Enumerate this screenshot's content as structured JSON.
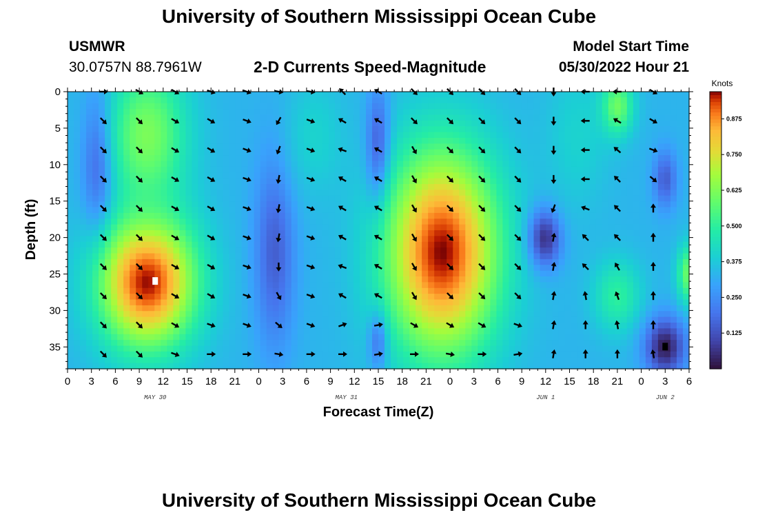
{
  "page": {
    "title_top": "University of Southern Mississippi Ocean Cube",
    "title_bottom": "University of Southern Mississippi Ocean Cube",
    "station_name": "USMWR",
    "station_coords": "30.0757N  88.7961W",
    "plot_title": "2-D Currents Speed-Magnitude",
    "model_start_label": "Model Start Time",
    "model_start_value": "05/30/2022 Hour 21"
  },
  "chart_data": {
    "type": "heatmap",
    "title": "2-D Currents Speed-Magnitude",
    "xlabel": "Forecast Time(Z)",
    "ylabel": "Depth (ft)",
    "colorbar_label": "Knots",
    "colorbar_ticks": [
      "0.875",
      "0.750",
      "0.625",
      "0.500",
      "0.375",
      "0.250",
      "0.125"
    ],
    "colorbar_tick_values": [
      0.875,
      0.75,
      0.625,
      0.5,
      0.375,
      0.25,
      0.125
    ],
    "colorbar_range": [
      0.0,
      0.97
    ],
    "x_range_hours": [
      0,
      78
    ],
    "x_tick_labels": [
      "0",
      "3",
      "6",
      "9",
      "12",
      "15",
      "18",
      "21",
      "0",
      "3",
      "6",
      "9",
      "12",
      "15",
      "18",
      "21",
      "0",
      "3",
      "6",
      "9",
      "12",
      "15",
      "18",
      "21",
      "0",
      "3",
      "6"
    ],
    "x_tick_hours": [
      0,
      3,
      6,
      9,
      12,
      15,
      18,
      21,
      24,
      27,
      30,
      33,
      36,
      39,
      42,
      45,
      48,
      51,
      54,
      57,
      60,
      63,
      66,
      69,
      72,
      75,
      78
    ],
    "date_labels": [
      {
        "text": "MAY 30",
        "hour": 11
      },
      {
        "text": "MAY 31",
        "hour": 35
      },
      {
        "text": "JUN 1",
        "hour": 60
      },
      {
        "text": "JUN 2",
        "hour": 75
      }
    ],
    "y_range_ft": [
      0,
      38
    ],
    "y_tick_labels": [
      "0",
      "5",
      "10",
      "15",
      "20",
      "25",
      "30",
      "35"
    ],
    "y_tick_values": [
      0,
      5,
      10,
      15,
      20,
      25,
      30,
      35
    ],
    "speed_features": [
      {
        "hour": 4,
        "depth": 10,
        "speed": 0.1,
        "sx": 2,
        "sy": 10
      },
      {
        "hour": 10,
        "depth": 26,
        "speed": 0.97,
        "sx": 6,
        "sy": 9
      },
      {
        "hour": 10,
        "depth": 6,
        "speed": 0.62,
        "sx": 5,
        "sy": 10
      },
      {
        "hour": 26,
        "depth": 22,
        "speed": 0.15,
        "sx": 2.5,
        "sy": 13
      },
      {
        "hour": 31,
        "depth": 6,
        "speed": 0.4,
        "sx": 3.5,
        "sy": 8
      },
      {
        "hour": 39,
        "depth": 8,
        "speed": 0.1,
        "sx": 1.5,
        "sy": 8
      },
      {
        "hour": 39,
        "depth": 34,
        "speed": 0.12,
        "sx": 1.2,
        "sy": 4
      },
      {
        "hour": 47,
        "depth": 22,
        "speed": 0.97,
        "sx": 7,
        "sy": 14
      },
      {
        "hour": 60,
        "depth": 20,
        "speed": 0.05,
        "sx": 2,
        "sy": 4
      },
      {
        "hour": 64,
        "depth": 6,
        "speed": 0.4,
        "sx": 4,
        "sy": 10
      },
      {
        "hour": 69,
        "depth": 2,
        "speed": 0.6,
        "sx": 2,
        "sy": 4
      },
      {
        "hour": 69,
        "depth": 28,
        "speed": 0.5,
        "sx": 3,
        "sy": 5
      },
      {
        "hour": 75,
        "depth": 35,
        "speed": 0.02,
        "sx": 2.5,
        "sy": 4
      },
      {
        "hour": 75,
        "depth": 12,
        "speed": 0.15,
        "sx": 1.5,
        "sy": 4
      },
      {
        "hour": 78,
        "depth": 25,
        "speed": 0.6,
        "sx": 1.5,
        "sy": 4
      }
    ],
    "base_speed": 0.33,
    "arrow_hours": [
      4.5,
      9,
      13.5,
      18,
      22.5,
      26.5,
      30.5,
      34.5,
      39,
      43.5,
      48,
      52,
      56.5,
      61,
      65,
      69,
      73.5
    ],
    "arrow_depths": [
      0,
      4,
      8,
      12,
      16,
      20,
      24,
      28,
      32,
      36
    ],
    "arrow_directions_deg": [
      [
        0,
        -45,
        -45,
        -45,
        -45,
        -45,
        -45,
        -45,
        -45,
        -45
      ],
      [
        -30,
        -45,
        -45,
        -45,
        -45,
        -45,
        -45,
        -45,
        -45,
        -45
      ],
      [
        -30,
        -30,
        -30,
        -30,
        -30,
        -30,
        -30,
        -30,
        -30,
        -20
      ],
      [
        -20,
        -30,
        -30,
        -30,
        -30,
        -30,
        -30,
        -30,
        -20,
        0
      ],
      [
        -20,
        -20,
        -20,
        -20,
        -20,
        -20,
        -20,
        -20,
        -20,
        0
      ],
      [
        -10,
        -120,
        -110,
        -100,
        -100,
        -100,
        -90,
        -60,
        -40,
        -10
      ],
      [
        -10,
        -20,
        -20,
        -20,
        -20,
        -20,
        -20,
        -20,
        -20,
        0
      ],
      [
        135,
        150,
        160,
        150,
        150,
        150,
        160,
        150,
        20,
        0
      ],
      [
        150,
        150,
        150,
        150,
        150,
        150,
        150,
        150,
        10,
        10
      ],
      [
        -45,
        -45,
        -60,
        -60,
        -60,
        -60,
        -60,
        -60,
        -30,
        0
      ],
      [
        -45,
        -45,
        -45,
        -45,
        -45,
        -45,
        -45,
        -45,
        -30,
        -10
      ],
      [
        -45,
        -45,
        -45,
        -45,
        -45,
        -45,
        -45,
        -45,
        -30,
        0
      ],
      [
        -45,
        -45,
        -45,
        -45,
        -45,
        -45,
        -45,
        -45,
        -20,
        10
      ],
      [
        -90,
        -90,
        -90,
        -90,
        -110,
        80,
        80,
        80,
        80,
        80
      ],
      [
        180,
        180,
        180,
        180,
        160,
        135,
        135,
        100,
        90,
        90
      ],
      [
        180,
        150,
        140,
        135,
        135,
        135,
        120,
        110,
        100,
        90
      ],
      [
        -30,
        -30,
        -20,
        -40,
        90,
        90,
        90,
        90,
        90,
        100
      ]
    ],
    "markers": [
      {
        "hour": 11,
        "depth": 26,
        "color": "#ffffff"
      },
      {
        "hour": 75,
        "depth": 35,
        "color": "#000000"
      }
    ]
  }
}
